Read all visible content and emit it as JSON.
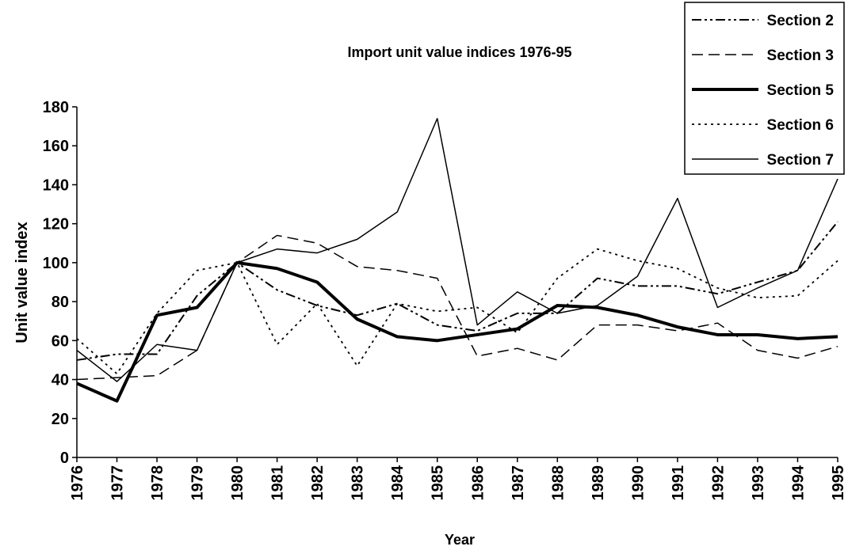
{
  "chart_data": {
    "type": "line",
    "title": "Import unit value indices 1976-95",
    "x_label": "Year",
    "y_label": "Unit value index",
    "categories": [
      "1976",
      "1977",
      "1978",
      "1979",
      "1980",
      "1981",
      "1982",
      "1983",
      "1984",
      "1985",
      "1986",
      "1987",
      "1988",
      "1989",
      "1990",
      "1991",
      "1992",
      "1993",
      "1994",
      "1995"
    ],
    "series": [
      {
        "name": "Section 2",
        "color": "#000000",
        "dash": "12,4,3,4,3,4",
        "width": 2,
        "values": [
          50,
          53,
          53,
          83,
          100,
          86,
          78,
          73,
          79,
          68,
          65,
          74,
          74,
          92,
          88,
          88,
          84,
          90,
          96,
          121
        ]
      },
      {
        "name": "Section 3",
        "color": "#000000",
        "dash": "14,7",
        "width": 1.5,
        "values": [
          40,
          41,
          42,
          55,
          100,
          114,
          110,
          98,
          96,
          92,
          52,
          56,
          50,
          68,
          68,
          65,
          69,
          55,
          51,
          57
        ]
      },
      {
        "name": "Section 5",
        "color": "#000000",
        "dash": "none",
        "width": 4,
        "values": [
          38,
          29,
          73,
          77,
          100,
          97,
          90,
          71,
          62,
          60,
          63,
          66,
          78,
          77,
          73,
          67,
          63,
          63,
          61,
          62
        ]
      },
      {
        "name": "Section 6",
        "color": "#000000",
        "dash": "3,5",
        "width": 1.8,
        "values": [
          61,
          43,
          74,
          96,
          100,
          58,
          79,
          47,
          79,
          75,
          77,
          64,
          92,
          107,
          101,
          97,
          87,
          82,
          83,
          101
        ]
      },
      {
        "name": "Section 7",
        "color": "#000000",
        "dash": "none",
        "width": 1.5,
        "values": [
          55,
          39,
          58,
          55,
          100,
          107,
          105,
          112,
          126,
          174,
          68,
          85,
          74,
          78,
          93,
          133,
          77,
          87,
          96,
          143
        ]
      }
    ],
    "ylim": [
      0,
      180
    ],
    "yticks": [
      0,
      20,
      40,
      60,
      80,
      100,
      120,
      140,
      160,
      180
    ],
    "grid": false,
    "legend": "top-right"
  }
}
